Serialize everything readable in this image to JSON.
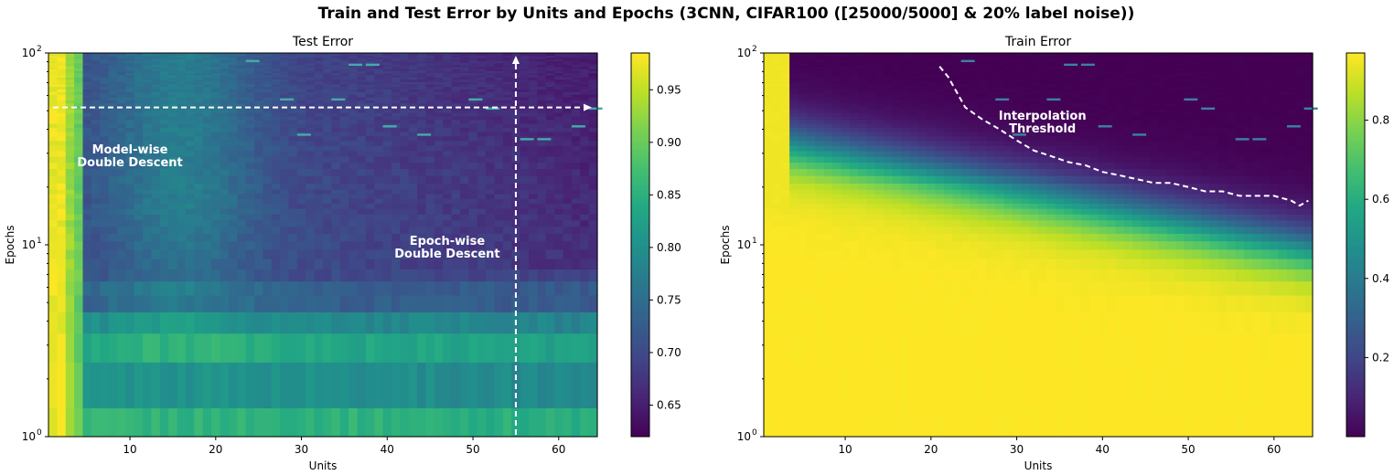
{
  "figure": {
    "suptitle": "Train and Test Error by Units and Epochs (3CNN, CIFAR100 ([25000/5000] & 20% label noise))"
  },
  "chart_data": [
    {
      "type": "heatmap",
      "title": "Test Error",
      "xlabel": "Units",
      "ylabel": "Epochs",
      "xlim": [
        1,
        64
      ],
      "ylim": [
        1,
        100
      ],
      "yscale": "log",
      "xticks": [
        "10",
        "20",
        "30",
        "40",
        "50",
        "60"
      ],
      "yticks": [
        "10^0",
        "10^1",
        "10^2"
      ],
      "colormap": "viridis",
      "colorbar": {
        "vmin": 0.62,
        "vmax": 0.985,
        "ticks": [
          "0.65",
          "0.70",
          "0.75",
          "0.80",
          "0.85",
          "0.90",
          "0.95"
        ]
      },
      "annotations": [
        {
          "text": [
            "Model-wise",
            "Double Descent"
          ],
          "x": 10,
          "y": 30
        },
        {
          "text": [
            "Epoch-wise",
            "Double Descent"
          ],
          "x": 47,
          "y": 10
        }
      ],
      "guides": {
        "horizontal_arrow_epoch": 52,
        "vertical_arrow_units": 55
      }
    },
    {
      "type": "heatmap",
      "title": "Train Error",
      "xlabel": "Units",
      "ylabel": "Epochs",
      "xlim": [
        1,
        64
      ],
      "ylim": [
        1,
        100
      ],
      "yscale": "log",
      "xticks": [
        "10",
        "20",
        "30",
        "40",
        "50",
        "60"
      ],
      "yticks": [
        "10^0",
        "10^1",
        "10^2"
      ],
      "colormap": "viridis",
      "colorbar": {
        "vmin": 0.0,
        "vmax": 0.97,
        "ticks": [
          "0.2",
          "0.4",
          "0.6",
          "0.8"
        ]
      },
      "annotations": [
        {
          "text": [
            "Interpolation",
            "Threshold"
          ],
          "x": 33,
          "y": 45
        }
      ],
      "threshold_curve": {
        "units": [
          21,
          22,
          24,
          26,
          28,
          30,
          32,
          34,
          36,
          38,
          40,
          42,
          44,
          46,
          48,
          50,
          52,
          54,
          56,
          58,
          60,
          62,
          63,
          64
        ],
        "epochs": [
          85,
          75,
          52,
          45,
          40,
          35,
          31,
          29,
          27,
          26,
          24,
          23,
          22,
          21,
          21,
          20,
          19,
          19,
          18,
          18,
          18,
          17,
          16,
          17
        ]
      }
    }
  ]
}
